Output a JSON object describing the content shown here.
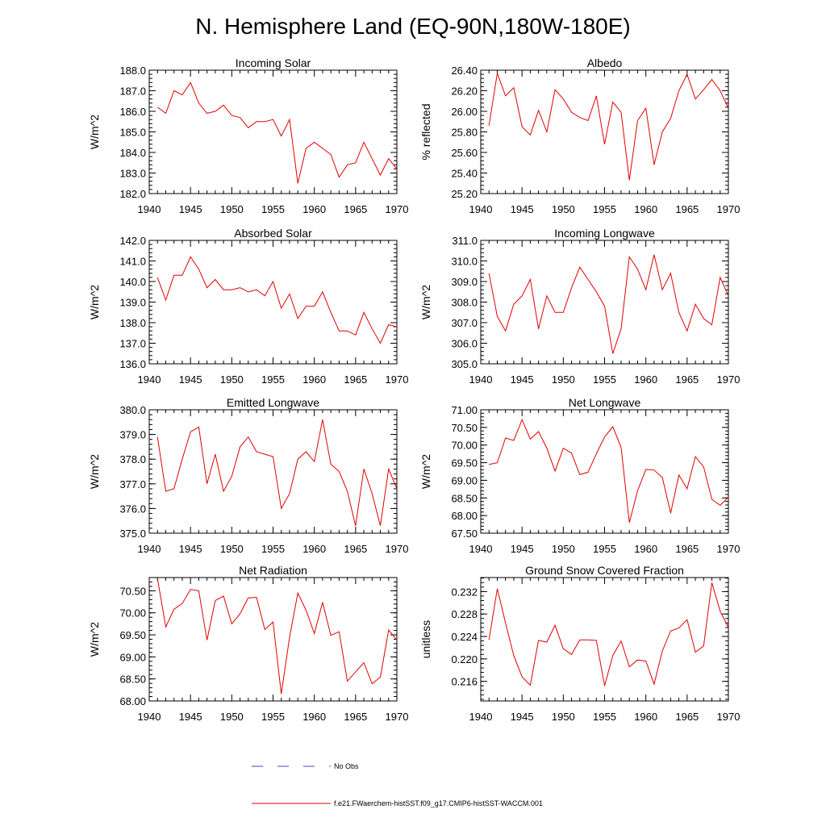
{
  "title": "N. Hemisphere Land (EQ-90N,180W-180E)",
  "legend": {
    "obs_label": "No Obs",
    "obs_color": "#4a4ab0",
    "model_label": "f.e21.FWaerchem-histSST.f09_g17.CMIP6-histSST-WACCM.001",
    "model_color": "#e00000"
  },
  "chart_data": [
    {
      "type": "line",
      "title": "Incoming Solar",
      "ylabel": "W/m^2",
      "xlim": [
        1940,
        1970
      ],
      "ylim": [
        182.0,
        188.0
      ],
      "xticks": [
        "1940",
        "1945",
        "1950",
        "1955",
        "1960",
        "1965",
        "1970"
      ],
      "yticks": [
        "182.0",
        "183.0",
        "184.0",
        "185.0",
        "186.0",
        "187.0",
        "188.0"
      ],
      "x": [
        1941,
        1942,
        1943,
        1944,
        1945,
        1946,
        1947,
        1948,
        1949,
        1950,
        1951,
        1952,
        1953,
        1954,
        1955,
        1956,
        1957,
        1958,
        1959,
        1960,
        1961,
        1962,
        1963,
        1964,
        1965,
        1966,
        1967,
        1968,
        1969,
        1970
      ],
      "values": [
        186.2,
        185.9,
        187.0,
        186.8,
        187.4,
        186.4,
        185.9,
        186.0,
        186.3,
        185.8,
        185.7,
        185.2,
        185.5,
        185.5,
        185.6,
        184.8,
        185.6,
        182.5,
        184.2,
        184.5,
        184.2,
        183.9,
        182.8,
        183.4,
        183.5,
        184.5,
        183.7,
        182.9,
        183.7,
        183.2
      ]
    },
    {
      "type": "line",
      "title": "Albedo",
      "ylabel": "% reflected",
      "xlim": [
        1940,
        1970
      ],
      "ylim": [
        25.2,
        26.4
      ],
      "xticks": [
        "1940",
        "1945",
        "1950",
        "1955",
        "1960",
        "1965",
        "1970"
      ],
      "yticks": [
        "25.20",
        "25.40",
        "25.60",
        "25.80",
        "26.00",
        "26.20",
        "26.40"
      ],
      "x": [
        1941,
        1942,
        1943,
        1944,
        1945,
        1946,
        1947,
        1948,
        1949,
        1950,
        1951,
        1952,
        1953,
        1954,
        1955,
        1956,
        1957,
        1958,
        1959,
        1960,
        1961,
        1962,
        1963,
        1964,
        1965,
        1966,
        1967,
        1968,
        1969,
        1970
      ],
      "values": [
        25.86,
        26.37,
        26.15,
        26.23,
        25.85,
        25.77,
        26.01,
        25.8,
        26.21,
        26.12,
        25.99,
        25.94,
        25.91,
        26.15,
        25.68,
        26.09,
        25.99,
        25.33,
        25.91,
        26.03,
        25.48,
        25.8,
        25.93,
        26.2,
        26.36,
        26.12,
        26.21,
        26.31,
        26.2,
        26.03
      ]
    },
    {
      "type": "line",
      "title": "Absorbed Solar",
      "ylabel": "W/m^2",
      "xlim": [
        1940,
        1970
      ],
      "ylim": [
        136.0,
        142.0
      ],
      "xticks": [
        "1940",
        "1945",
        "1950",
        "1955",
        "1960",
        "1965",
        "1970"
      ],
      "yticks": [
        "136.0",
        "137.0",
        "138.0",
        "139.0",
        "140.0",
        "141.0",
        "142.0"
      ],
      "x": [
        1941,
        1942,
        1943,
        1944,
        1945,
        1946,
        1947,
        1948,
        1949,
        1950,
        1951,
        1952,
        1953,
        1954,
        1955,
        1956,
        1957,
        1958,
        1959,
        1960,
        1961,
        1962,
        1963,
        1964,
        1965,
        1966,
        1967,
        1968,
        1969,
        1970
      ],
      "values": [
        140.2,
        139.1,
        140.3,
        140.3,
        141.2,
        140.6,
        139.7,
        140.1,
        139.6,
        139.6,
        139.7,
        139.5,
        139.6,
        139.3,
        140.0,
        138.7,
        139.4,
        138.2,
        138.8,
        138.8,
        139.5,
        138.5,
        137.6,
        137.6,
        137.4,
        138.5,
        137.7,
        137.0,
        137.9,
        137.8
      ]
    },
    {
      "type": "line",
      "title": "Incoming Longwave",
      "ylabel": "W/m^2",
      "xlim": [
        1940,
        1970
      ],
      "ylim": [
        305.0,
        311.0
      ],
      "xticks": [
        "1940",
        "1945",
        "1950",
        "1955",
        "1960",
        "1965",
        "1970"
      ],
      "yticks": [
        "305.0",
        "306.0",
        "307.0",
        "308.0",
        "309.0",
        "310.0",
        "311.0"
      ],
      "x": [
        1941,
        1942,
        1943,
        1944,
        1945,
        1946,
        1947,
        1948,
        1949,
        1950,
        1951,
        1952,
        1953,
        1954,
        1955,
        1956,
        1957,
        1958,
        1959,
        1960,
        1961,
        1962,
        1963,
        1964,
        1965,
        1966,
        1967,
        1968,
        1969,
        1970
      ],
      "values": [
        309.4,
        307.3,
        306.6,
        307.9,
        308.3,
        309.1,
        306.7,
        308.3,
        307.5,
        307.5,
        308.7,
        309.7,
        309.1,
        308.5,
        307.8,
        305.5,
        306.7,
        310.2,
        309.6,
        308.6,
        310.3,
        308.6,
        309.4,
        307.5,
        306.6,
        307.9,
        307.2,
        306.9,
        309.2,
        308.3
      ]
    },
    {
      "type": "line",
      "title": "Emitted Longwave",
      "ylabel": "W/m^2",
      "xlim": [
        1940,
        1970
      ],
      "ylim": [
        375.0,
        380.0
      ],
      "xticks": [
        "1940",
        "1945",
        "1950",
        "1955",
        "1960",
        "1965",
        "1970"
      ],
      "yticks": [
        "375.0",
        "376.0",
        "377.0",
        "378.0",
        "379.0",
        "380.0"
      ],
      "x": [
        1941,
        1942,
        1943,
        1944,
        1945,
        1946,
        1947,
        1948,
        1949,
        1950,
        1951,
        1952,
        1953,
        1954,
        1955,
        1956,
        1957,
        1958,
        1959,
        1960,
        1961,
        1962,
        1963,
        1964,
        1965,
        1966,
        1967,
        1968,
        1969,
        1970
      ],
      "values": [
        378.9,
        376.7,
        376.8,
        378.0,
        379.1,
        379.3,
        377.0,
        378.2,
        376.7,
        377.3,
        378.5,
        378.9,
        378.3,
        378.2,
        378.1,
        376.0,
        376.6,
        378.0,
        378.3,
        377.9,
        379.6,
        377.8,
        377.5,
        376.7,
        375.3,
        377.6,
        376.6,
        375.3,
        377.6,
        376.8
      ]
    },
    {
      "type": "line",
      "title": "Net Longwave",
      "ylabel": "W/m^2",
      "xlim": [
        1940,
        1970
      ],
      "ylim": [
        67.5,
        71.0
      ],
      "xticks": [
        "1940",
        "1945",
        "1950",
        "1955",
        "1960",
        "1965",
        "1970"
      ],
      "yticks": [
        "67.50",
        "68.00",
        "68.50",
        "69.00",
        "69.50",
        "70.00",
        "70.50",
        "71.00"
      ],
      "x": [
        1941,
        1942,
        1943,
        1944,
        1945,
        1946,
        1947,
        1948,
        1949,
        1950,
        1951,
        1952,
        1953,
        1954,
        1955,
        1956,
        1957,
        1958,
        1959,
        1960,
        1961,
        1962,
        1963,
        1964,
        1965,
        1966,
        1967,
        1968,
        1969,
        1970
      ],
      "values": [
        69.45,
        69.5,
        70.2,
        70.13,
        70.72,
        70.17,
        70.38,
        69.91,
        69.26,
        69.91,
        69.77,
        69.16,
        69.23,
        69.75,
        70.23,
        70.52,
        69.93,
        67.8,
        68.7,
        69.31,
        69.29,
        69.08,
        68.07,
        69.15,
        68.76,
        69.67,
        69.38,
        68.46,
        68.29,
        68.52
      ]
    },
    {
      "type": "line",
      "title": "Net Radiation",
      "ylabel": "W/m^2",
      "xlim": [
        1940,
        1970
      ],
      "ylim": [
        68.0,
        70.8
      ],
      "xticks": [
        "1940",
        "1945",
        "1950",
        "1955",
        "1960",
        "1965",
        "1970"
      ],
      "yticks": [
        "68.00",
        "68.50",
        "69.00",
        "69.50",
        "70.00",
        "70.50"
      ],
      "x": [
        1941,
        1942,
        1943,
        1944,
        1945,
        1946,
        1947,
        1948,
        1949,
        1950,
        1951,
        1952,
        1953,
        1954,
        1955,
        1956,
        1957,
        1958,
        1959,
        1960,
        1961,
        1962,
        1963,
        1964,
        1965,
        1966,
        1967,
        1968,
        1969,
        1970
      ],
      "values": [
        70.78,
        69.68,
        70.08,
        70.21,
        70.53,
        70.5,
        69.38,
        70.28,
        70.38,
        69.75,
        69.98,
        70.34,
        70.35,
        69.62,
        69.79,
        68.16,
        69.45,
        70.45,
        70.06,
        69.53,
        70.24,
        69.49,
        69.57,
        68.45,
        68.66,
        68.87,
        68.39,
        68.54,
        69.61,
        69.38
      ]
    },
    {
      "type": "line",
      "title": "Ground Snow Covered Fraction",
      "ylabel": "unitless",
      "xlim": [
        1940,
        1970
      ],
      "ylim": [
        0.2125,
        0.2345
      ],
      "xticks": [
        "1940",
        "1945",
        "1950",
        "1955",
        "1960",
        "1965",
        "1970"
      ],
      "yticks": [
        "0.216",
        "0.220",
        "0.224",
        "0.228",
        "0.232"
      ],
      "x": [
        1941,
        1942,
        1943,
        1944,
        1945,
        1946,
        1947,
        1948,
        1949,
        1950,
        1951,
        1952,
        1953,
        1954,
        1955,
        1956,
        1957,
        1958,
        1959,
        1960,
        1961,
        1962,
        1963,
        1964,
        1965,
        1966,
        1967,
        1968,
        1969,
        1970
      ],
      "values": [
        0.2234,
        0.2325,
        0.2264,
        0.2206,
        0.2168,
        0.2153,
        0.2233,
        0.223,
        0.226,
        0.2218,
        0.2208,
        0.2234,
        0.2234,
        0.2233,
        0.2152,
        0.2206,
        0.2232,
        0.2186,
        0.2198,
        0.2196,
        0.2155,
        0.2214,
        0.225,
        0.2255,
        0.227,
        0.2212,
        0.2223,
        0.2336,
        0.2285,
        0.2256
      ]
    }
  ]
}
